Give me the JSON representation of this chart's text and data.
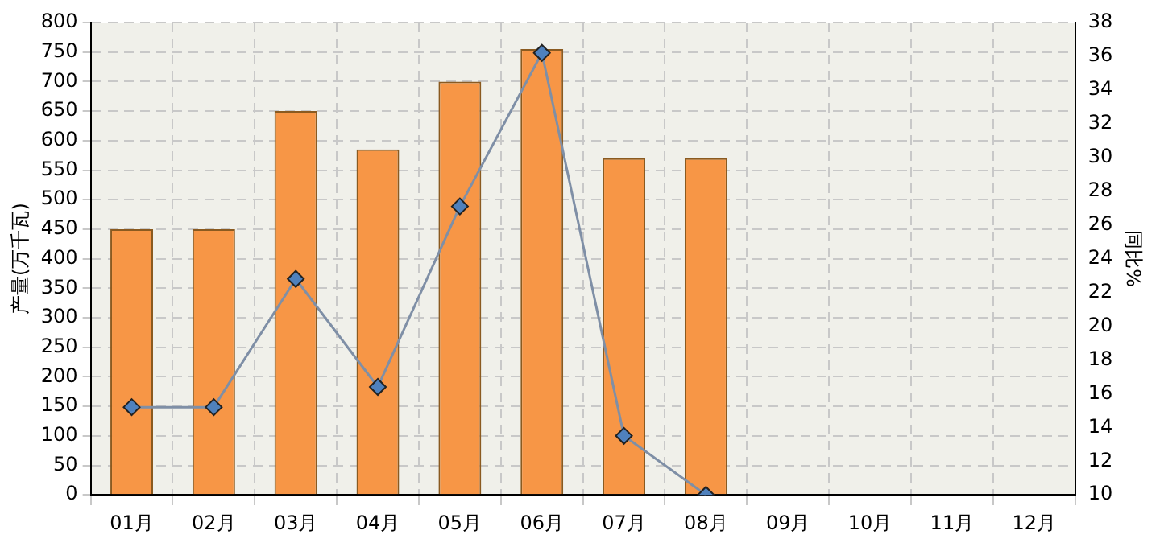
{
  "chart_data": {
    "type": "bar",
    "ylabel": "产量(万千瓦)",
    "y2label": "同比%",
    "categories": [
      "01月",
      "02月",
      "03月",
      "04月",
      "05月",
      "06月",
      "07月",
      "08月",
      "09月",
      "10月",
      "11月",
      "12月"
    ],
    "series": [
      {
        "color": "#f79646",
        "values": [
          450,
          450,
          650,
          585,
          700,
          755,
          570,
          570,
          null,
          null,
          null,
          null
        ]
      },
      {
        "type": "line",
        "axis": "y2",
        "color": "#4f81bd",
        "marker": "diamond",
        "values": [
          15.2,
          15.2,
          22.8,
          16.4,
          27.1,
          36.2,
          13.5,
          10.0,
          null,
          null,
          null,
          null
        ]
      }
    ],
    "ylim": [
      0,
      800
    ],
    "yticks": [
      0,
      50,
      100,
      150,
      200,
      250,
      300,
      350,
      400,
      450,
      500,
      550,
      600,
      650,
      700,
      750,
      800
    ],
    "y2lim": [
      10,
      38
    ],
    "y2ticks": [
      10,
      12,
      14,
      16,
      18,
      20,
      22,
      24,
      26,
      28,
      30,
      32,
      34,
      36,
      38
    ],
    "grid": true,
    "legend": false
  }
}
